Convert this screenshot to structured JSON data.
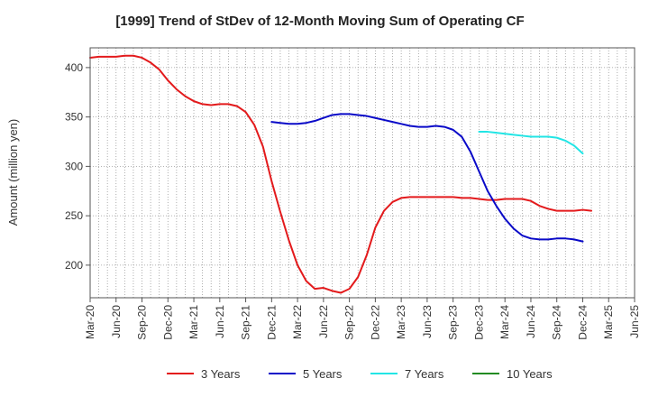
{
  "chart_data": {
    "type": "line",
    "title": "[1999]  Trend of StDev of 12-Month Moving Sum of Operating CF",
    "ylabel": "Amount (million yen)",
    "xlabel": "",
    "ylim": [
      167,
      420
    ],
    "yticks": [
      200,
      250,
      300,
      350,
      400
    ],
    "x_tick_labels": [
      "Mar-20",
      "Jun-20",
      "Sep-20",
      "Dec-20",
      "Mar-21",
      "Jun-21",
      "Sep-21",
      "Dec-21",
      "Mar-22",
      "Jun-22",
      "Sep-22",
      "Dec-22",
      "Mar-23",
      "Jun-23",
      "Sep-23",
      "Dec-23",
      "Mar-24",
      "Jun-24",
      "Sep-24",
      "Dec-24",
      "Mar-25",
      "Jun-25"
    ],
    "grid": true,
    "legend_position": "bottom",
    "series": [
      {
        "name": "3 Years",
        "color": "#e31a1c",
        "start_month": 0,
        "values": [
          410,
          411,
          411,
          411,
          412,
          412,
          410,
          405,
          398,
          387,
          378,
          371,
          366,
          363,
          362,
          363,
          363,
          361,
          355,
          342,
          320,
          285,
          254,
          225,
          200,
          184,
          176,
          177,
          174,
          172,
          176,
          188,
          210,
          238,
          255,
          264,
          268,
          269,
          269,
          269,
          269,
          269,
          269,
          268,
          268,
          267,
          266,
          266,
          267,
          267,
          267,
          265,
          260,
          257,
          255,
          255,
          255,
          256,
          255
        ]
      },
      {
        "name": "5 Years",
        "color": "#0a0ac8",
        "start_month": 21,
        "values": [
          345,
          344,
          343,
          343,
          344,
          346,
          349,
          352,
          353,
          353,
          352,
          351,
          349,
          347,
          345,
          343,
          341,
          340,
          340,
          341,
          340,
          337,
          330,
          315,
          295,
          275,
          260,
          247,
          237,
          230,
          227,
          226,
          226,
          227,
          227,
          226,
          224
        ]
      },
      {
        "name": "7 Years",
        "color": "#22e5e5",
        "start_month": 45,
        "values": [
          335,
          335,
          334,
          333,
          332,
          331,
          330,
          330,
          330,
          329,
          326,
          321,
          313
        ]
      },
      {
        "name": "10 Years",
        "color": "#228b22",
        "start_month": 0,
        "values": []
      }
    ]
  }
}
